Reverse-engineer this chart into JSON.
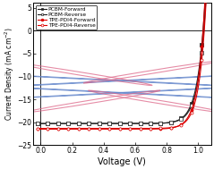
{
  "title": "",
  "xlabel": "Voltage (V)",
  "ylabel": "Current Density (mA cm$^{-2}$)",
  "xlim": [
    -0.05,
    1.08
  ],
  "ylim": [
    -25,
    6
  ],
  "yticks": [
    -25,
    -20,
    -15,
    -10,
    -5,
    0,
    5
  ],
  "xticks": [
    0.0,
    0.2,
    0.4,
    0.6,
    0.8,
    1.0
  ],
  "pcbm_color": "#222222",
  "tpe_color": "#dd0000",
  "background_color": "#ffffff",
  "legend_labels": [
    "PCBM-Forward",
    "PCBM-Reverse",
    "TPE-PDI4-Forward",
    "TPE-PDI4-Reverse"
  ],
  "pcbm_jsc": -20.3,
  "pcbm_voc": 1.03,
  "tpe_jsc": -21.5,
  "tpe_voc": 1.03
}
